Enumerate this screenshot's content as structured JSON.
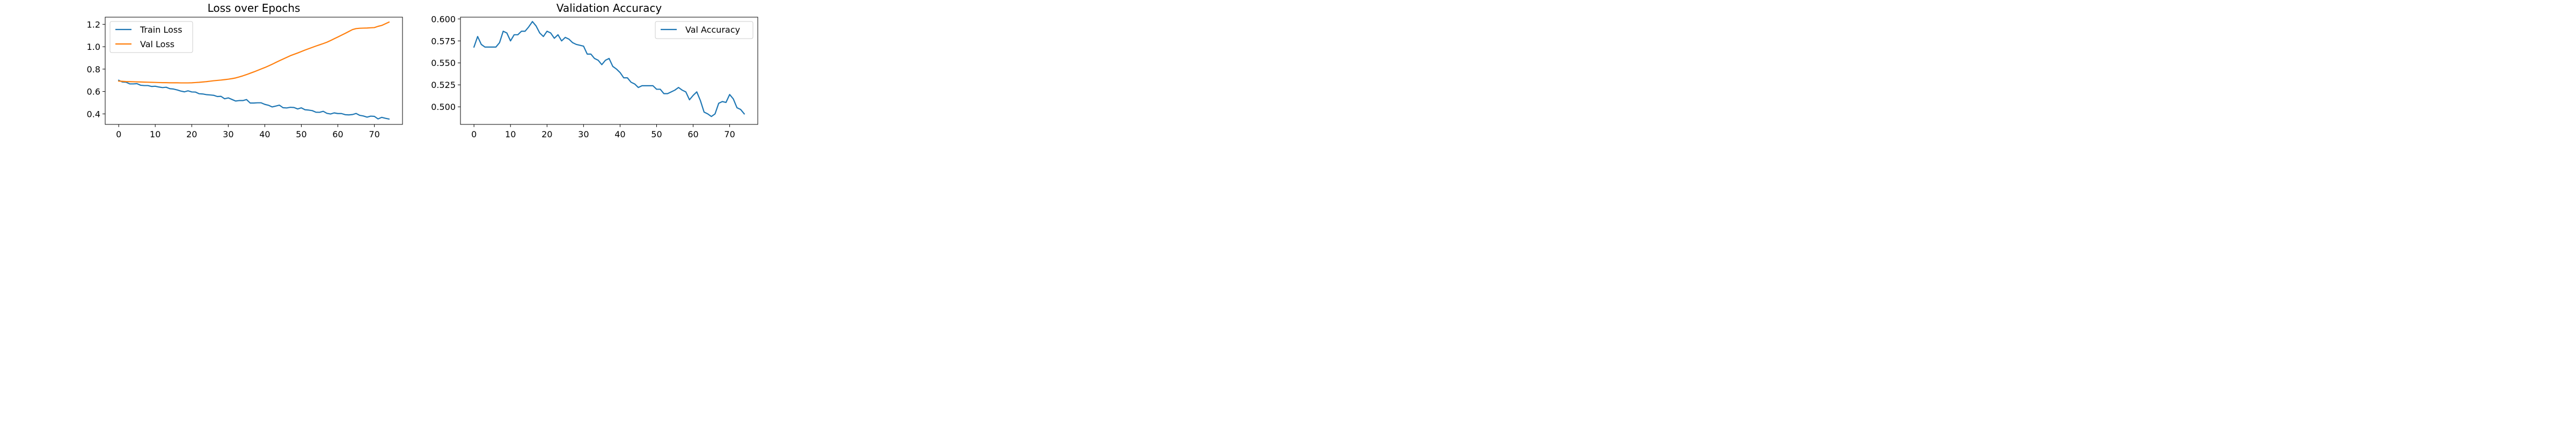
{
  "chart_data": [
    {
      "type": "line",
      "title": "Loss over Epochs",
      "xlabel": "",
      "ylabel": "",
      "xlim": [
        -3.7,
        77.7
      ],
      "ylim": [
        0.306,
        1.264
      ],
      "xticks": [
        0,
        10,
        20,
        30,
        40,
        50,
        60,
        70
      ],
      "yticks": [
        0.4,
        0.6,
        0.8,
        1.0,
        1.2
      ],
      "ytick_labels": [
        "0.4",
        "0.6",
        "0.8",
        "1.0",
        "1.2"
      ],
      "grid": false,
      "legend": "top-left",
      "series": [
        {
          "name": "Train Loss",
          "color": "#1f77b4",
          "values": [
            0.7,
            0.685,
            0.683,
            0.668,
            0.668,
            0.67,
            0.656,
            0.653,
            0.653,
            0.645,
            0.647,
            0.64,
            0.635,
            0.638,
            0.625,
            0.622,
            0.614,
            0.604,
            0.597,
            0.606,
            0.596,
            0.595,
            0.58,
            0.578,
            0.572,
            0.569,
            0.566,
            0.555,
            0.557,
            0.535,
            0.543,
            0.529,
            0.515,
            0.519,
            0.519,
            0.528,
            0.497,
            0.497,
            0.499,
            0.499,
            0.485,
            0.477,
            0.462,
            0.47,
            0.478,
            0.455,
            0.453,
            0.459,
            0.457,
            0.444,
            0.454,
            0.437,
            0.434,
            0.429,
            0.415,
            0.414,
            0.423,
            0.405,
            0.399,
            0.409,
            0.403,
            0.403,
            0.393,
            0.391,
            0.394,
            0.404,
            0.387,
            0.381,
            0.371,
            0.38,
            0.378,
            0.355,
            0.369,
            0.361,
            0.354
          ]
        },
        {
          "name": "Val Loss",
          "color": "#ff7f0e",
          "values": [
            0.693,
            0.691,
            0.689,
            0.688,
            0.687,
            0.686,
            0.685,
            0.684,
            0.683,
            0.682,
            0.681,
            0.68,
            0.679,
            0.679,
            0.678,
            0.678,
            0.678,
            0.677,
            0.677,
            0.677,
            0.678,
            0.68,
            0.682,
            0.685,
            0.688,
            0.692,
            0.696,
            0.699,
            0.702,
            0.706,
            0.71,
            0.715,
            0.721,
            0.73,
            0.74,
            0.751,
            0.763,
            0.775,
            0.788,
            0.801,
            0.814,
            0.828,
            0.843,
            0.859,
            0.875,
            0.89,
            0.905,
            0.92,
            0.932,
            0.944,
            0.957,
            0.97,
            0.982,
            0.994,
            1.006,
            1.017,
            1.028,
            1.04,
            1.055,
            1.071,
            1.087,
            1.103,
            1.119,
            1.136,
            1.153,
            1.162,
            1.165,
            1.166,
            1.167,
            1.169,
            1.171,
            1.182,
            1.19,
            1.205,
            1.22
          ]
        }
      ]
    },
    {
      "type": "line",
      "title": "Validation Accuracy",
      "xlabel": "",
      "ylabel": "",
      "xlim": [
        -3.7,
        77.7
      ],
      "ylim": [
        0.48,
        0.602
      ],
      "xticks": [
        0,
        10,
        20,
        30,
        40,
        50,
        60,
        70
      ],
      "yticks": [
        0.5,
        0.525,
        0.55,
        0.575,
        0.6
      ],
      "ytick_labels": [
        "0.500",
        "0.525",
        "0.550",
        "0.575",
        "0.600"
      ],
      "grid": false,
      "legend": "top-right",
      "series": [
        {
          "name": "Val Accuracy",
          "color": "#1f77b4",
          "values": [
            0.568,
            0.58,
            0.571,
            0.568,
            0.568,
            0.568,
            0.568,
            0.573,
            0.586,
            0.584,
            0.575,
            0.582,
            0.582,
            0.586,
            0.586,
            0.591,
            0.597,
            0.592,
            0.584,
            0.58,
            0.586,
            0.584,
            0.578,
            0.582,
            0.575,
            0.579,
            0.577,
            0.573,
            0.571,
            0.57,
            0.569,
            0.56,
            0.56,
            0.555,
            0.553,
            0.548,
            0.553,
            0.555,
            0.546,
            0.543,
            0.539,
            0.533,
            0.533,
            0.528,
            0.526,
            0.522,
            0.524,
            0.524,
            0.524,
            0.524,
            0.52,
            0.52,
            0.515,
            0.515,
            0.517,
            0.519,
            0.522,
            0.519,
            0.517,
            0.508,
            0.513,
            0.517,
            0.507,
            0.494,
            0.492,
            0.489,
            0.492,
            0.504,
            0.506,
            0.505,
            0.514,
            0.509,
            0.499,
            0.497,
            0.492
          ]
        }
      ]
    }
  ]
}
